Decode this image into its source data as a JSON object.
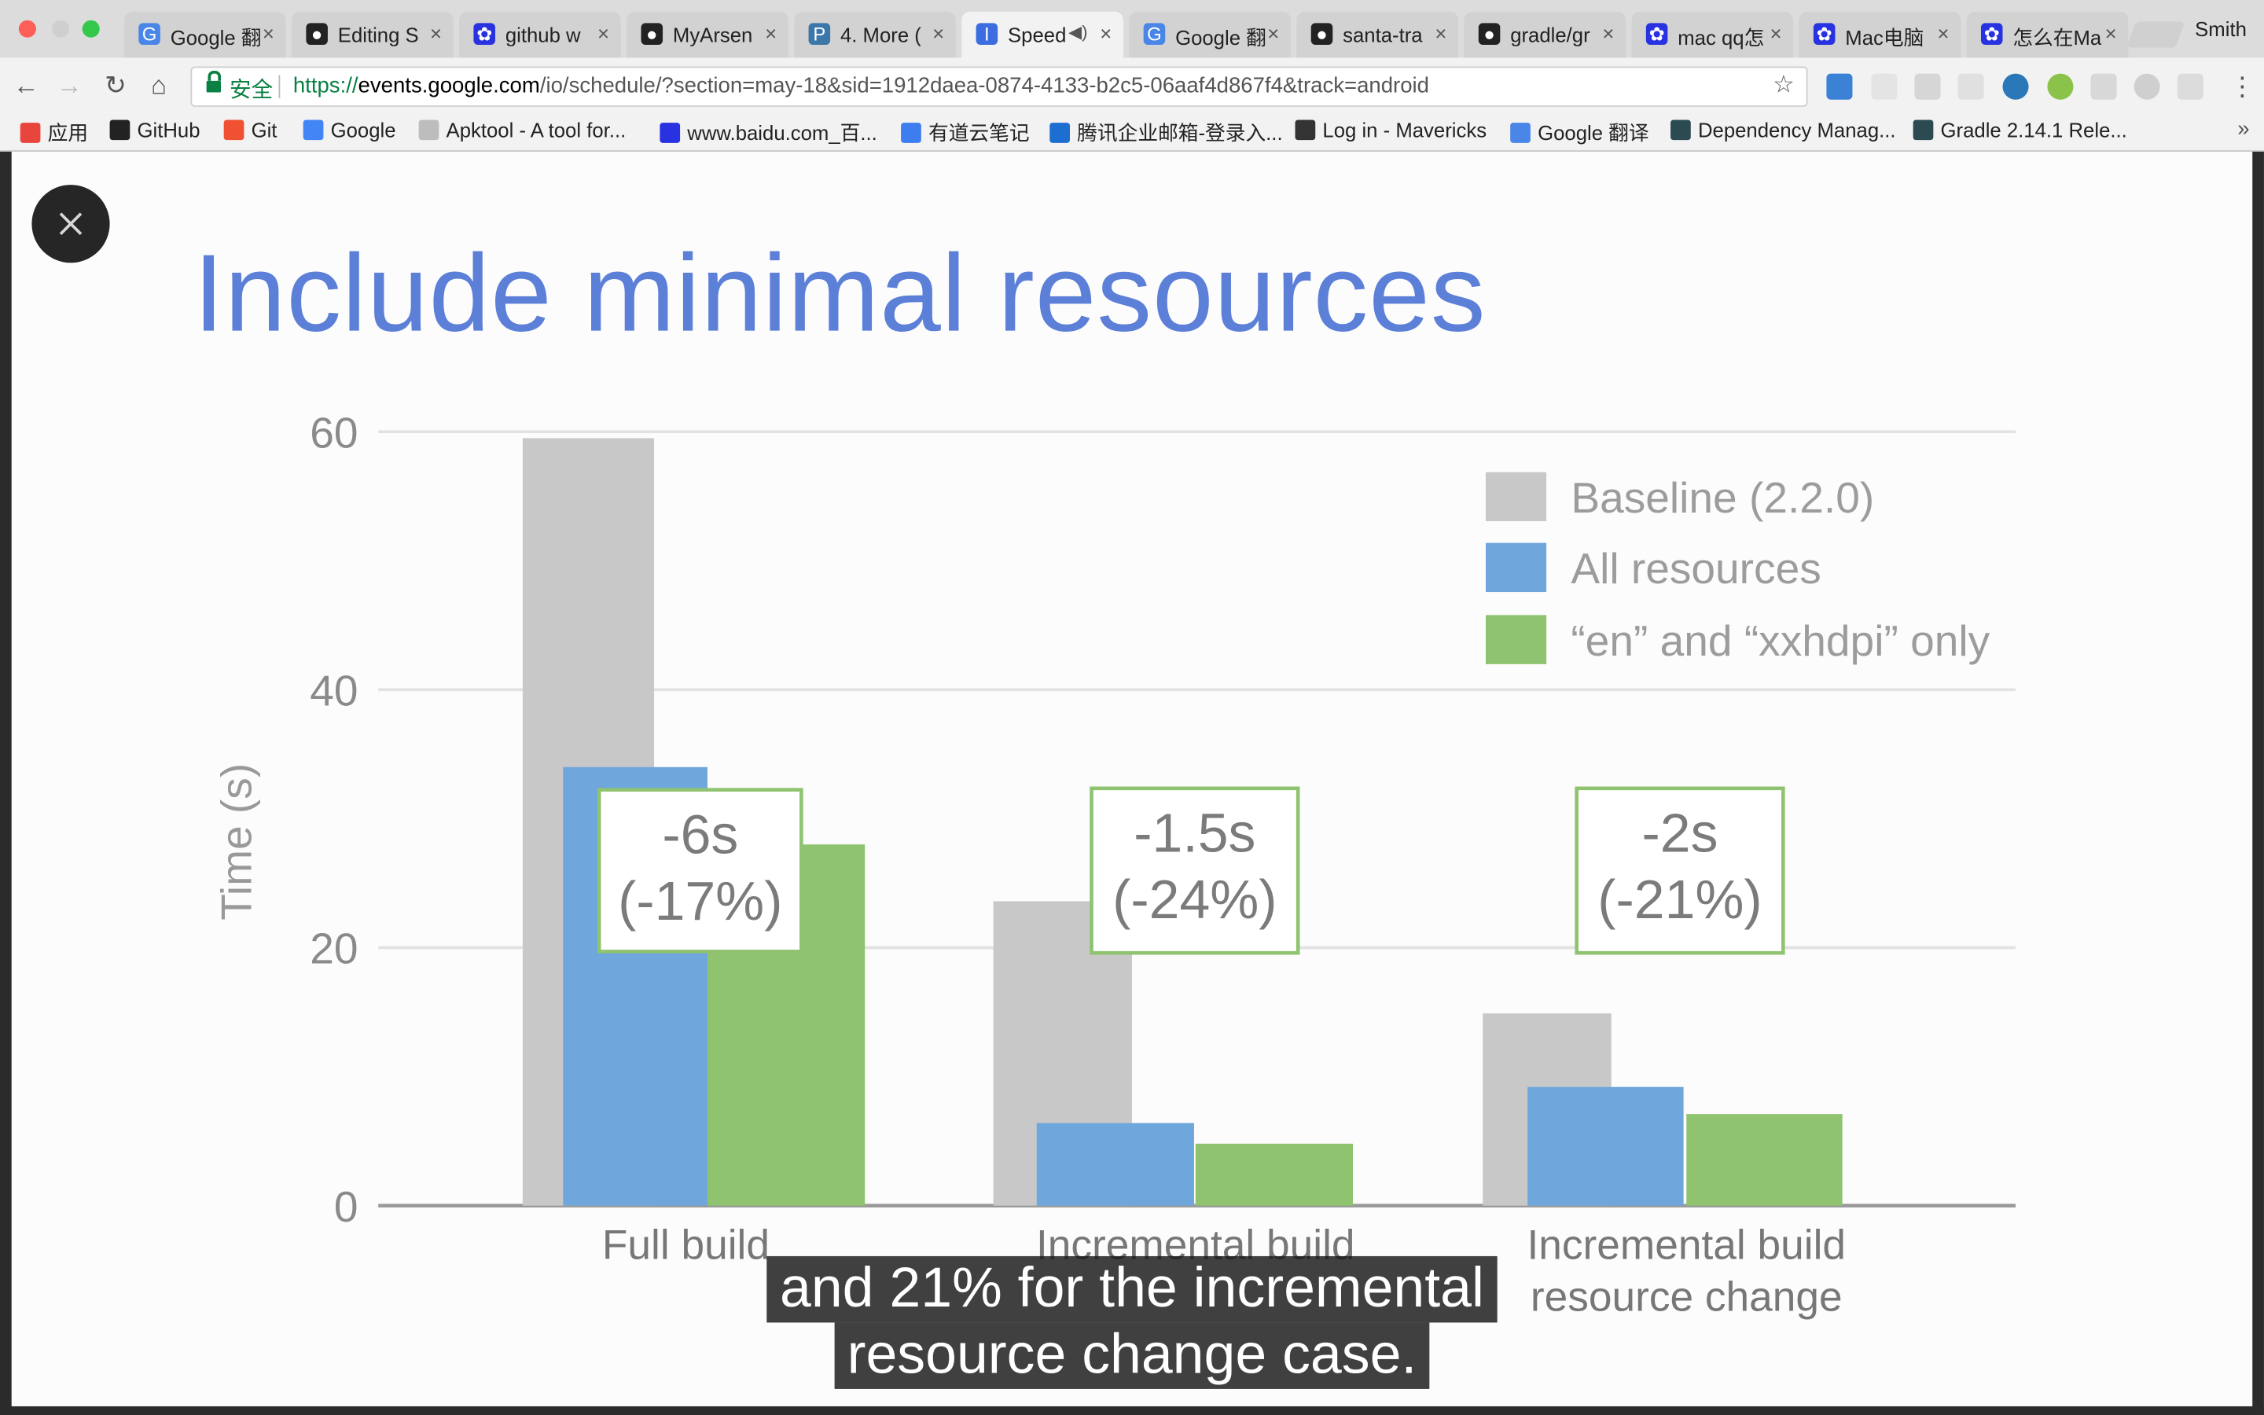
{
  "browser": {
    "tabs": [
      {
        "label": "Google 翻",
        "favicon": "google-translate-icon",
        "active": false
      },
      {
        "label": "Editing S",
        "favicon": "github-icon",
        "active": false
      },
      {
        "label": "github w",
        "favicon": "baidu-paw-icon",
        "active": false
      },
      {
        "label": "MyArsen",
        "favicon": "github-icon",
        "active": false
      },
      {
        "label": "4. More (",
        "favicon": "python-icon",
        "active": false
      },
      {
        "label": "Speed",
        "favicon": "google-io-icon",
        "active": true
      },
      {
        "label": "Google 翻",
        "favicon": "google-translate-icon",
        "active": false
      },
      {
        "label": "santa-tra",
        "favicon": "github-icon",
        "active": false
      },
      {
        "label": "gradle/gr",
        "favicon": "github-icon",
        "active": false
      },
      {
        "label": "mac qq怎",
        "favicon": "baidu-paw-icon",
        "active": false
      },
      {
        "label": "Mac电脑",
        "favicon": "baidu-paw-icon",
        "active": false
      },
      {
        "label": "怎么在Ma",
        "favicon": "baidu-paw-icon",
        "active": false
      }
    ],
    "user_name": "Smith",
    "omnibox": {
      "security_label": "安全",
      "url_scheme": "https://",
      "url_host": "events.google.com",
      "url_path": "/io/schedule/?section=may-18&sid=1912daea-0874-4133-b2c5-06aaf4d867f4&track=android"
    },
    "bookmarks": [
      {
        "label": "应用",
        "icon": "apps-grid-icon"
      },
      {
        "label": "GitHub",
        "icon": "github-icon"
      },
      {
        "label": "Git",
        "icon": "git-icon"
      },
      {
        "label": "Google",
        "icon": "google-icon"
      },
      {
        "label": "Apktool - A tool for...",
        "icon": "page-icon"
      },
      {
        "label": "www.baidu.com_百...",
        "icon": "baidu-paw-icon"
      },
      {
        "label": "有道云笔记",
        "icon": "youdao-note-icon"
      },
      {
        "label": "腾讯企业邮箱-登录入...",
        "icon": "tencent-mail-icon"
      },
      {
        "label": "Log in - Mavericks",
        "icon": "mavericks-icon"
      },
      {
        "label": "Google 翻译",
        "icon": "google-translate-icon"
      },
      {
        "label": "Dependency Manag...",
        "icon": "gradle-icon"
      },
      {
        "label": "Gradle 2.14.1 Rele...",
        "icon": "gradle-icon"
      }
    ],
    "bookmarks_more": "»"
  },
  "video": {
    "slide_title": "Include minimal resources",
    "caption_lines": [
      "and 21% for the incremental",
      "resource change case."
    ]
  },
  "chart_data": {
    "type": "bar",
    "ylabel": "Time (s)",
    "ylim": [
      0,
      60
    ],
    "yticks": [
      0,
      20,
      40,
      60
    ],
    "grid": true,
    "legend_position": "top-right",
    "categories": [
      "Full build",
      "Incremental build",
      "Incremental build resource change"
    ],
    "category_label_lines": [
      [
        "Full build"
      ],
      [
        "Incremental build",
        ""
      ],
      [
        "Incremental build",
        "resource change"
      ]
    ],
    "series": [
      {
        "name": "Baseline (2.2.0)",
        "color": "#c8c8c8",
        "values": [
          59.5,
          23.6,
          14.9
        ]
      },
      {
        "name": "All resources",
        "color": "#6fa6dc",
        "values": [
          34,
          6.4,
          9.2
        ]
      },
      {
        "name": "“en” and “xxhdpi” only",
        "color": "#8fc370",
        "values": [
          28,
          4.8,
          7.1
        ]
      }
    ],
    "annotations": [
      {
        "lines": [
          "-6s",
          "(-17%)"
        ],
        "category": "Full build"
      },
      {
        "lines": [
          "-1.5s",
          "(-24%)"
        ],
        "category": "Incremental build"
      },
      {
        "lines": [
          "-2s",
          "(-21%)"
        ],
        "category": "Incremental build resource change"
      }
    ]
  }
}
